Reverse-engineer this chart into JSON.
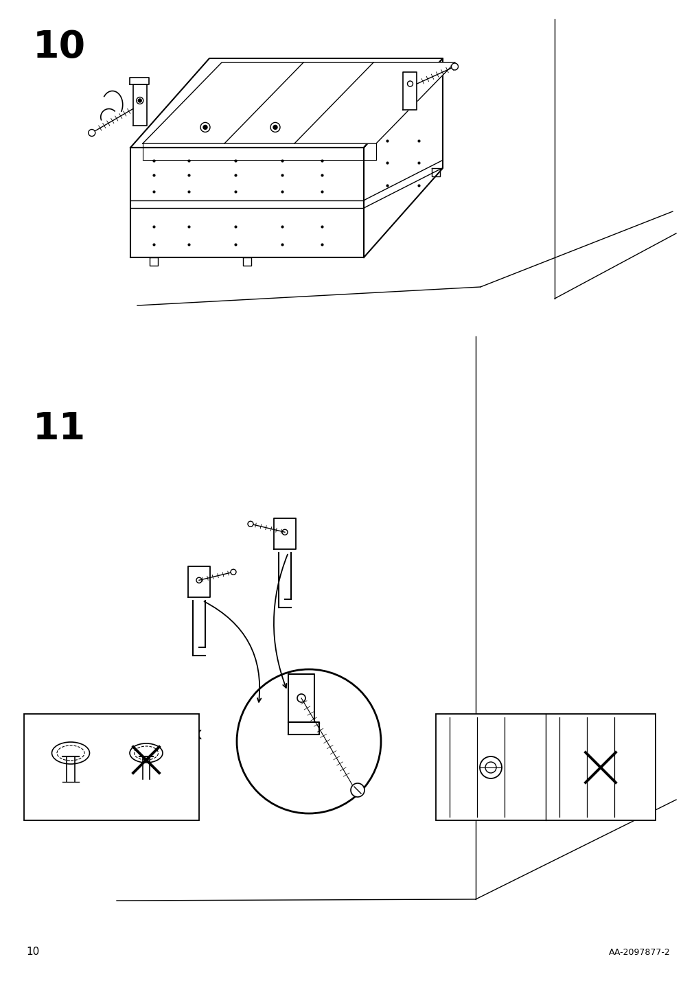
{
  "bg_color": "#ffffff",
  "line_color": "#000000",
  "step10_number": "10",
  "step11_number": "11",
  "page_number": "10",
  "doc_number": "AA-2097877-2"
}
